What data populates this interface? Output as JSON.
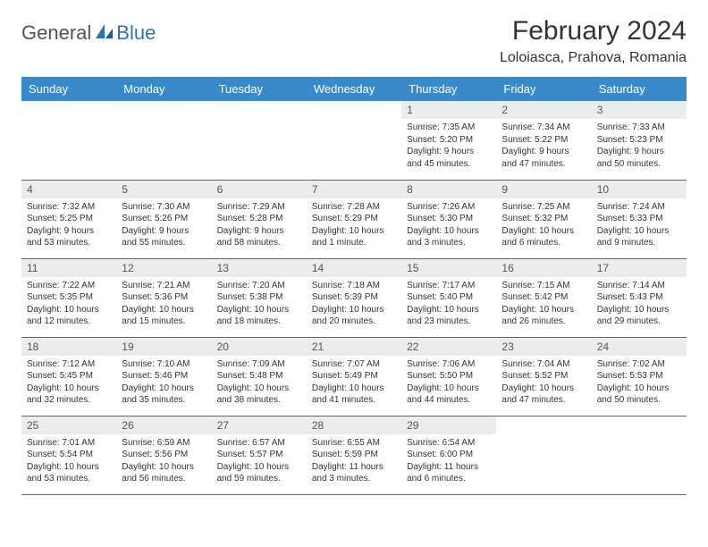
{
  "logo": {
    "text1": "General",
    "text2": "Blue"
  },
  "title": "February 2024",
  "location": "Loloiasca, Prahova, Romania",
  "colors": {
    "header_bg": "#3a8ac9",
    "header_text": "#ffffff",
    "accent": "#2e74b5",
    "daynum_bg": "#ececec",
    "text": "#333333",
    "muted": "#555555"
  },
  "weekdays": [
    "Sunday",
    "Monday",
    "Tuesday",
    "Wednesday",
    "Thursday",
    "Friday",
    "Saturday"
  ],
  "labels": {
    "sunrise": "Sunrise:",
    "sunset": "Sunset:",
    "daylight": "Daylight:"
  },
  "weeks": [
    [
      null,
      null,
      null,
      null,
      {
        "n": "1",
        "sunrise": "7:35 AM",
        "sunset": "5:20 PM",
        "daylight": "9 hours and 45 minutes."
      },
      {
        "n": "2",
        "sunrise": "7:34 AM",
        "sunset": "5:22 PM",
        "daylight": "9 hours and 47 minutes."
      },
      {
        "n": "3",
        "sunrise": "7:33 AM",
        "sunset": "5:23 PM",
        "daylight": "9 hours and 50 minutes."
      }
    ],
    [
      {
        "n": "4",
        "sunrise": "7:32 AM",
        "sunset": "5:25 PM",
        "daylight": "9 hours and 53 minutes."
      },
      {
        "n": "5",
        "sunrise": "7:30 AM",
        "sunset": "5:26 PM",
        "daylight": "9 hours and 55 minutes."
      },
      {
        "n": "6",
        "sunrise": "7:29 AM",
        "sunset": "5:28 PM",
        "daylight": "9 hours and 58 minutes."
      },
      {
        "n": "7",
        "sunrise": "7:28 AM",
        "sunset": "5:29 PM",
        "daylight": "10 hours and 1 minute."
      },
      {
        "n": "8",
        "sunrise": "7:26 AM",
        "sunset": "5:30 PM",
        "daylight": "10 hours and 3 minutes."
      },
      {
        "n": "9",
        "sunrise": "7:25 AM",
        "sunset": "5:32 PM",
        "daylight": "10 hours and 6 minutes."
      },
      {
        "n": "10",
        "sunrise": "7:24 AM",
        "sunset": "5:33 PM",
        "daylight": "10 hours and 9 minutes."
      }
    ],
    [
      {
        "n": "11",
        "sunrise": "7:22 AM",
        "sunset": "5:35 PM",
        "daylight": "10 hours and 12 minutes."
      },
      {
        "n": "12",
        "sunrise": "7:21 AM",
        "sunset": "5:36 PM",
        "daylight": "10 hours and 15 minutes."
      },
      {
        "n": "13",
        "sunrise": "7:20 AM",
        "sunset": "5:38 PM",
        "daylight": "10 hours and 18 minutes."
      },
      {
        "n": "14",
        "sunrise": "7:18 AM",
        "sunset": "5:39 PM",
        "daylight": "10 hours and 20 minutes."
      },
      {
        "n": "15",
        "sunrise": "7:17 AM",
        "sunset": "5:40 PM",
        "daylight": "10 hours and 23 minutes."
      },
      {
        "n": "16",
        "sunrise": "7:15 AM",
        "sunset": "5:42 PM",
        "daylight": "10 hours and 26 minutes."
      },
      {
        "n": "17",
        "sunrise": "7:14 AM",
        "sunset": "5:43 PM",
        "daylight": "10 hours and 29 minutes."
      }
    ],
    [
      {
        "n": "18",
        "sunrise": "7:12 AM",
        "sunset": "5:45 PM",
        "daylight": "10 hours and 32 minutes."
      },
      {
        "n": "19",
        "sunrise": "7:10 AM",
        "sunset": "5:46 PM",
        "daylight": "10 hours and 35 minutes."
      },
      {
        "n": "20",
        "sunrise": "7:09 AM",
        "sunset": "5:48 PM",
        "daylight": "10 hours and 38 minutes."
      },
      {
        "n": "21",
        "sunrise": "7:07 AM",
        "sunset": "5:49 PM",
        "daylight": "10 hours and 41 minutes."
      },
      {
        "n": "22",
        "sunrise": "7:06 AM",
        "sunset": "5:50 PM",
        "daylight": "10 hours and 44 minutes."
      },
      {
        "n": "23",
        "sunrise": "7:04 AM",
        "sunset": "5:52 PM",
        "daylight": "10 hours and 47 minutes."
      },
      {
        "n": "24",
        "sunrise": "7:02 AM",
        "sunset": "5:53 PM",
        "daylight": "10 hours and 50 minutes."
      }
    ],
    [
      {
        "n": "25",
        "sunrise": "7:01 AM",
        "sunset": "5:54 PM",
        "daylight": "10 hours and 53 minutes."
      },
      {
        "n": "26",
        "sunrise": "6:59 AM",
        "sunset": "5:56 PM",
        "daylight": "10 hours and 56 minutes."
      },
      {
        "n": "27",
        "sunrise": "6:57 AM",
        "sunset": "5:57 PM",
        "daylight": "10 hours and 59 minutes."
      },
      {
        "n": "28",
        "sunrise": "6:55 AM",
        "sunset": "5:59 PM",
        "daylight": "11 hours and 3 minutes."
      },
      {
        "n": "29",
        "sunrise": "6:54 AM",
        "sunset": "6:00 PM",
        "daylight": "11 hours and 6 minutes."
      },
      null,
      null
    ]
  ]
}
